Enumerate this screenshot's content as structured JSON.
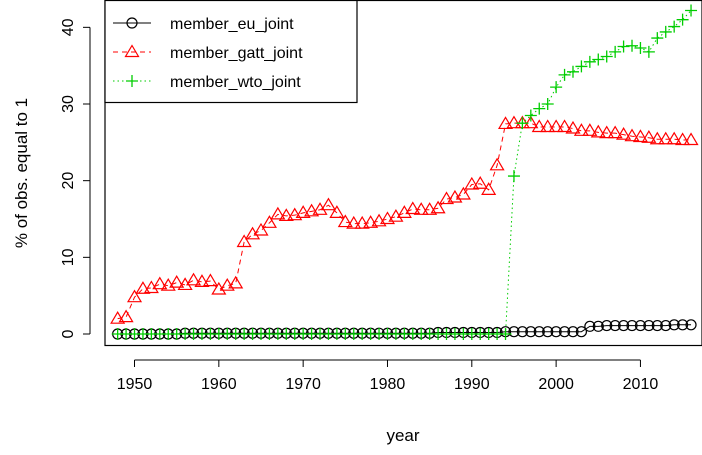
{
  "chart_data": {
    "type": "line",
    "xlabel": "year",
    "ylabel": "% of obs. equal to 1",
    "xlim": [
      1946.5,
      2017.3
    ],
    "ylim": [
      -1.5,
      43.5
    ],
    "x_ticks": [
      1950,
      1960,
      1970,
      1980,
      1990,
      2000,
      2010
    ],
    "y_ticks": [
      0,
      10,
      20,
      30,
      40
    ],
    "x": [
      1948,
      1949,
      1950,
      1951,
      1952,
      1953,
      1954,
      1955,
      1956,
      1957,
      1958,
      1959,
      1960,
      1961,
      1962,
      1963,
      1964,
      1965,
      1966,
      1967,
      1968,
      1969,
      1970,
      1971,
      1972,
      1973,
      1974,
      1975,
      1976,
      1977,
      1978,
      1979,
      1980,
      1981,
      1982,
      1983,
      1984,
      1985,
      1986,
      1987,
      1988,
      1989,
      1990,
      1991,
      1992,
      1993,
      1994,
      1995,
      1996,
      1997,
      1998,
      1999,
      2000,
      2001,
      2002,
      2003,
      2004,
      2005,
      2006,
      2007,
      2008,
      2009,
      2010,
      2011,
      2012,
      2013,
      2014,
      2015,
      2016
    ],
    "grid": false,
    "legend_position": "top-left",
    "series": [
      {
        "name": "member_eu_joint",
        "color": "#000000",
        "line_style": "solid",
        "marker": "circle",
        "values": [
          0,
          0,
          0,
          0,
          0,
          0,
          0,
          0,
          0.1,
          0.1,
          0.1,
          0.1,
          0.1,
          0.1,
          0.1,
          0.1,
          0.1,
          0.1,
          0.1,
          0.1,
          0.1,
          0.1,
          0.1,
          0.1,
          0.1,
          0.1,
          0.1,
          0.1,
          0.1,
          0.1,
          0.1,
          0.1,
          0.1,
          0.1,
          0.1,
          0.1,
          0.1,
          0.1,
          0.2,
          0.2,
          0.2,
          0.2,
          0.2,
          0.2,
          0.2,
          0.2,
          0.3,
          0.3,
          0.3,
          0.3,
          0.3,
          0.3,
          0.3,
          0.3,
          0.3,
          0.3,
          1.0,
          1.0,
          1.1,
          1.1,
          1.1,
          1.1,
          1.1,
          1.1,
          1.1,
          1.1,
          1.2,
          1.2,
          1.2
        ]
      },
      {
        "name": "member_gatt_joint",
        "color": "#ff0000",
        "line_style": "dashed",
        "marker": "triangle",
        "values": [
          2.0,
          2.2,
          4.8,
          5.9,
          6.0,
          6.5,
          6.3,
          6.7,
          6.4,
          7.0,
          6.8,
          6.9,
          5.8,
          6.3,
          6.6,
          12.0,
          13.0,
          13.5,
          14.5,
          15.6,
          15.4,
          15.5,
          15.8,
          16.0,
          16.2,
          16.8,
          15.8,
          14.6,
          14.4,
          14.4,
          14.5,
          14.7,
          15.0,
          15.3,
          15.8,
          16.3,
          16.2,
          16.2,
          16.4,
          17.6,
          17.8,
          18.2,
          19.5,
          19.6,
          18.8,
          22.0,
          27.4,
          27.5,
          27.5,
          27.5,
          27.0,
          27.0,
          27.0,
          27.0,
          26.8,
          26.5,
          26.5,
          26.3,
          26.2,
          26.2,
          26.0,
          25.8,
          25.7,
          25.6,
          25.4,
          25.4,
          25.4,
          25.3,
          25.3
        ]
      },
      {
        "name": "member_wto_joint",
        "color": "#00cd00",
        "line_style": "dotted",
        "marker": "plus",
        "values": [
          0,
          0,
          0,
          0,
          0,
          0,
          0,
          0,
          0,
          0,
          0,
          0,
          0,
          0,
          0,
          0,
          0,
          0,
          0,
          0,
          0,
          0,
          0,
          0,
          0,
          0,
          0,
          0,
          0,
          0,
          0,
          0,
          0,
          0,
          0,
          0,
          0,
          0,
          0,
          0,
          0,
          0,
          0,
          0,
          0,
          0,
          0,
          20.6,
          27.5,
          28.5,
          29.4,
          30.0,
          32.2,
          33.8,
          34.2,
          34.9,
          35.5,
          35.8,
          36.2,
          36.8,
          37.5,
          37.6,
          37.3,
          36.8,
          38.6,
          39.4,
          40.1,
          41.0,
          42.2
        ]
      }
    ]
  }
}
